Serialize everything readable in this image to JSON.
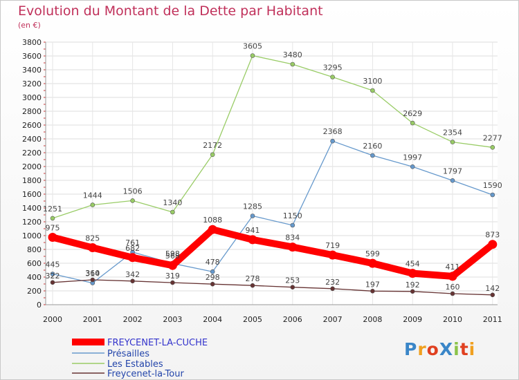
{
  "chart_data": {
    "type": "line",
    "title": "Evolution du Montant de la Dette par Habitant",
    "subtitle": "(en €)",
    "categories": [
      "2000",
      "2001",
      "2002",
      "2003",
      "2004",
      "2005",
      "2006",
      "2007",
      "2008",
      "2009",
      "2010",
      "2011"
    ],
    "ylim": [
      0,
      3800
    ],
    "yticks": [
      0,
      200,
      400,
      600,
      800,
      1000,
      1200,
      1400,
      1600,
      1800,
      2000,
      2200,
      2400,
      2600,
      2800,
      3000,
      3200,
      3400,
      3600,
      3800
    ],
    "grid": true,
    "series": [
      {
        "name": "FREYCENET-LA-CUCHE",
        "color": "#ff0000",
        "values": [
          975,
          825,
          682,
          568,
          1088,
          941,
          834,
          719,
          599,
          454,
          411,
          873
        ]
      },
      {
        "name": "Présailles",
        "color": "#6699cc",
        "values": [
          445,
          314,
          761,
          598,
          478,
          1285,
          1150,
          2368,
          2160,
          1997,
          1797,
          1590
        ]
      },
      {
        "name": "Les Estables",
        "color": "#99cc66",
        "values": [
          1251,
          1444,
          1506,
          1340,
          2172,
          3605,
          3480,
          3295,
          3100,
          2629,
          2354,
          2277
        ]
      },
      {
        "name": "Freycenet-la-Tour",
        "color": "#663333",
        "values": [
          322,
          360,
          342,
          319,
          298,
          278,
          253,
          232,
          197,
          192,
          160,
          142
        ]
      }
    ]
  },
  "logo": {
    "text": "ProXiti",
    "colors": [
      "#3a86c8",
      "#f0a020",
      "#e04020",
      "#3a86c8",
      "#8bc34a",
      "#e04020",
      "#f0a020"
    ]
  }
}
